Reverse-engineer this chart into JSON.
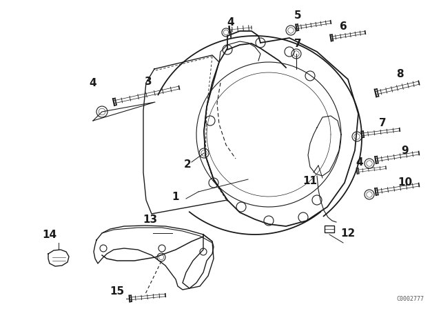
{
  "bg_color": "#ffffff",
  "fg_color": "#1a1a1a",
  "watermark": "C0002777",
  "figsize": [
    6.4,
    4.48
  ],
  "dpi": 100
}
